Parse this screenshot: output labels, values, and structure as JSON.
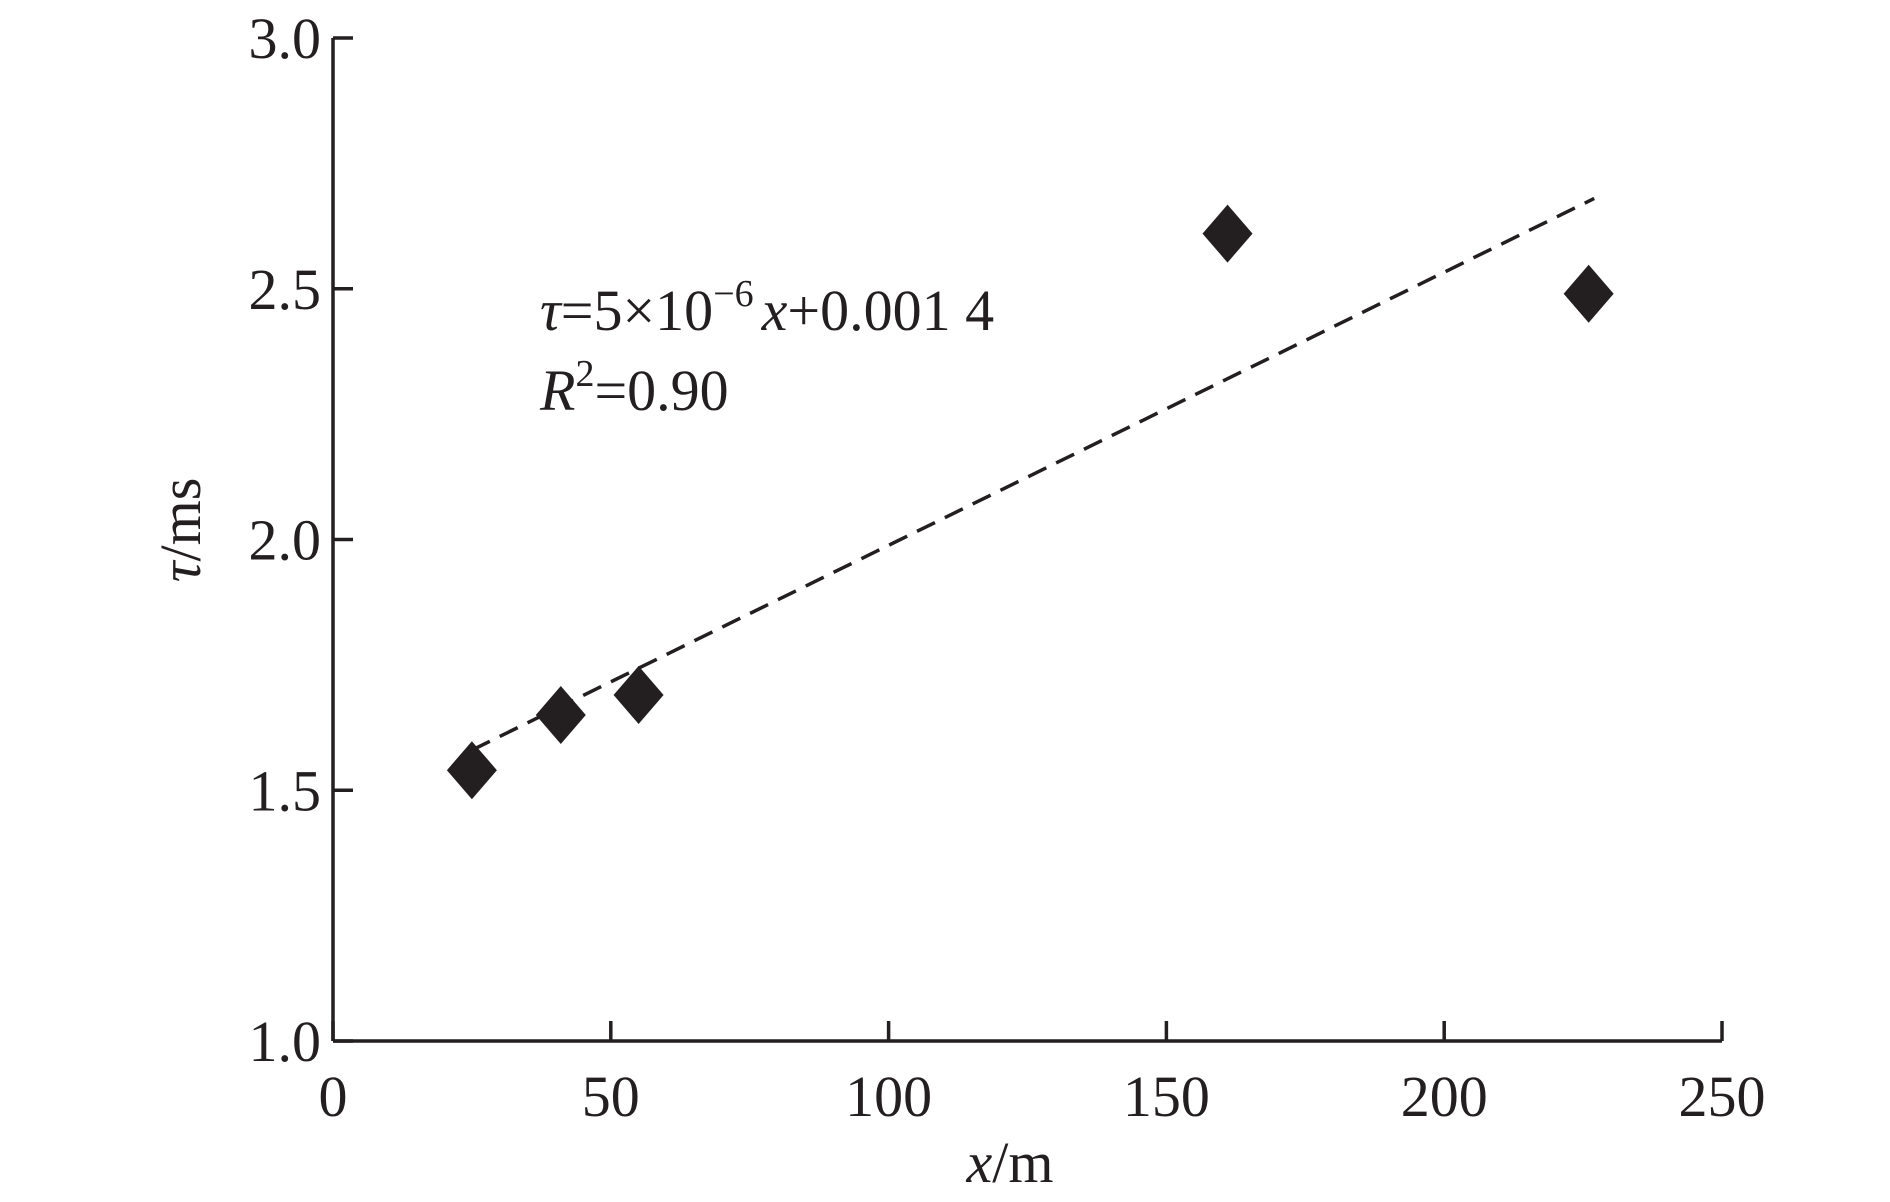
{
  "chart_data": {
    "type": "scatter",
    "title": "",
    "xlabel": {
      "var": "x",
      "unit": "/m"
    },
    "ylabel": {
      "var": "τ",
      "unit": "/ms"
    },
    "xlim": [
      0,
      250
    ],
    "ylim": [
      1.0,
      3.0
    ],
    "xticks": [
      0,
      50,
      100,
      150,
      200,
      250
    ],
    "xtick_labels": [
      "0",
      "50",
      "100",
      "150",
      "200",
      "250"
    ],
    "yticks": [
      1.0,
      1.5,
      2.0,
      2.5,
      3.0
    ],
    "ytick_labels": [
      "1.0",
      "1.5",
      "2.0",
      "2.5",
      "3.0"
    ],
    "grid": false,
    "marker": "diamond",
    "marker_color": "#231f20",
    "points": [
      {
        "x": 25,
        "y": 1.54
      },
      {
        "x": 41,
        "y": 1.65
      },
      {
        "x": 55,
        "y": 1.69
      },
      {
        "x": 161,
        "y": 2.61
      },
      {
        "x": 226,
        "y": 2.49
      }
    ],
    "fit": {
      "style": "dashed",
      "x": [
        25,
        227
      ],
      "y": [
        1.58,
        2.68
      ]
    },
    "annotation": {
      "eq_var": "τ",
      "eq_mid": "=5×10",
      "eq_exp": "−6",
      "eq_x": "x",
      "eq_tail": "+0.001 4",
      "r_var": "R",
      "r_exp": "2",
      "r_tail": "=0.90"
    }
  }
}
